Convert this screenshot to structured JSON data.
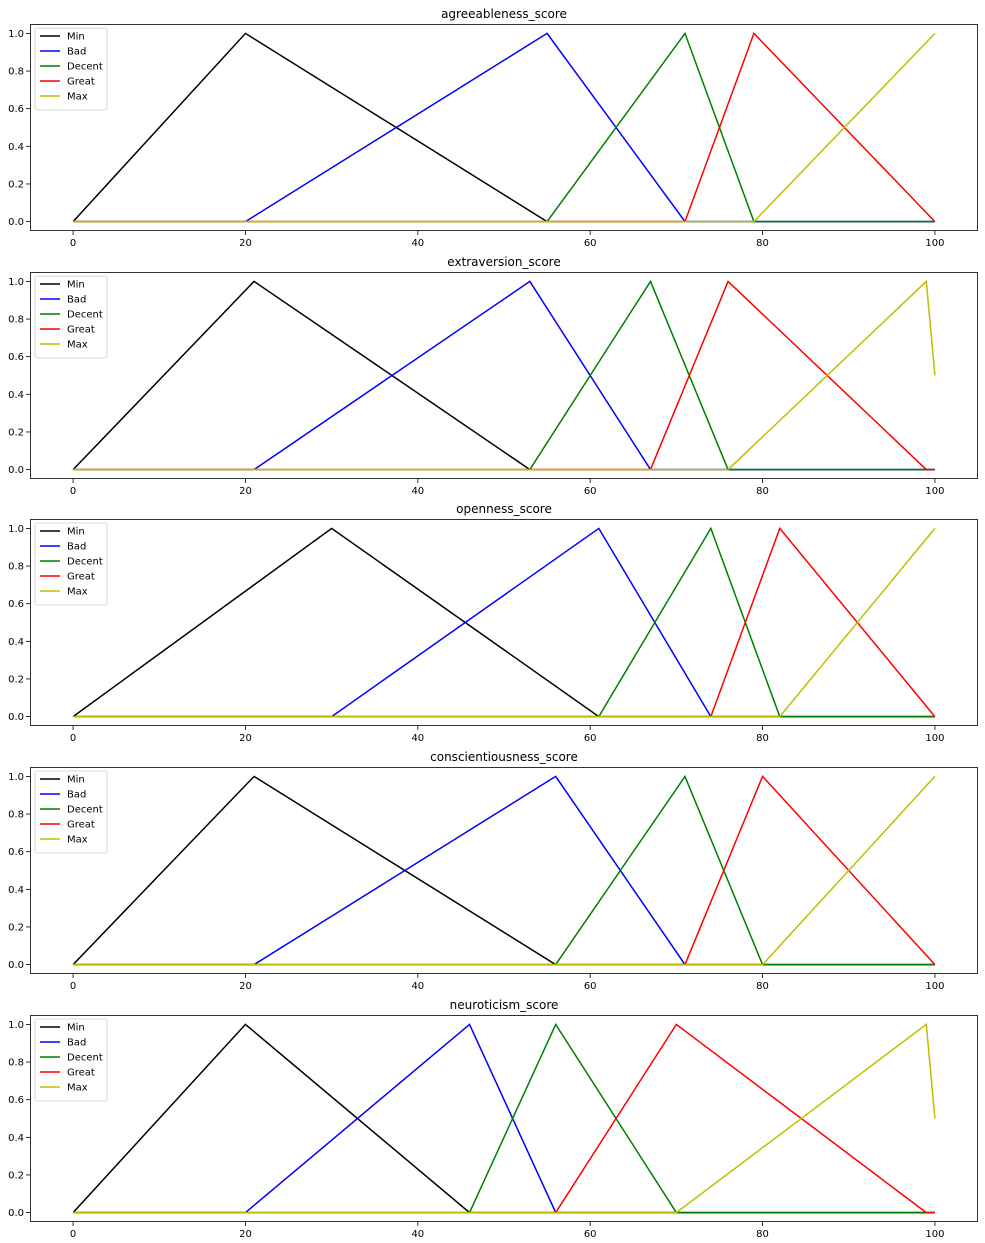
{
  "chart_data": [
    {
      "type": "line",
      "title": "agreeableness_score",
      "xlim": [
        -5,
        105
      ],
      "ylim": [
        -0.05,
        1.05
      ],
      "xticks": [
        0,
        20,
        40,
        60,
        80,
        100
      ],
      "xtick_labels": [
        "0",
        "20",
        "40",
        "60",
        "80",
        "100"
      ],
      "yticks": [
        0,
        0.2,
        0.4,
        0.6,
        0.8,
        1.0
      ],
      "ytick_labels": [
        "0.0",
        "0.2",
        "0.4",
        "0.6",
        "0.8",
        "1.0"
      ],
      "legend": "upper left",
      "series": [
        {
          "name": "Min",
          "color": "#000000",
          "x": [
            0,
            20,
            55,
            100
          ],
          "y": [
            0,
            1,
            0,
            0
          ]
        },
        {
          "name": "Bad",
          "color": "#0000ff",
          "x": [
            0,
            20,
            55,
            71,
            100
          ],
          "y": [
            0,
            0,
            1,
            0,
            0
          ]
        },
        {
          "name": "Decent",
          "color": "#008000",
          "x": [
            0,
            55,
            71,
            79,
            100
          ],
          "y": [
            0,
            0,
            1,
            0,
            0
          ]
        },
        {
          "name": "Great",
          "color": "#ff0000",
          "x": [
            0,
            71,
            79,
            100
          ],
          "y": [
            0,
            0,
            1,
            0
          ]
        },
        {
          "name": "Max",
          "color": "#bfbf00",
          "x": [
            0,
            79,
            100
          ],
          "y": [
            0,
            0,
            1
          ]
        }
      ]
    },
    {
      "type": "line",
      "title": "extraversion_score",
      "xlim": [
        -5,
        105
      ],
      "ylim": [
        -0.05,
        1.05
      ],
      "xticks": [
        0,
        20,
        40,
        60,
        80,
        100
      ],
      "xtick_labels": [
        "0",
        "20",
        "40",
        "60",
        "80",
        "100"
      ],
      "yticks": [
        0,
        0.2,
        0.4,
        0.6,
        0.8,
        1.0
      ],
      "ytick_labels": [
        "0.0",
        "0.2",
        "0.4",
        "0.6",
        "0.8",
        "1.0"
      ],
      "legend": "upper left",
      "series": [
        {
          "name": "Min",
          "color": "#000000",
          "x": [
            0,
            21,
            53,
            100
          ],
          "y": [
            0,
            1,
            0,
            0
          ]
        },
        {
          "name": "Bad",
          "color": "#0000ff",
          "x": [
            0,
            21,
            53,
            67,
            100
          ],
          "y": [
            0,
            0,
            1,
            0,
            0
          ]
        },
        {
          "name": "Decent",
          "color": "#008000",
          "x": [
            0,
            53,
            67,
            76,
            100
          ],
          "y": [
            0,
            0,
            1,
            0,
            0
          ]
        },
        {
          "name": "Great",
          "color": "#ff0000",
          "x": [
            0,
            67,
            76,
            99,
            100
          ],
          "y": [
            0,
            0,
            1,
            0,
            0
          ]
        },
        {
          "name": "Max",
          "color": "#bfbf00",
          "x": [
            0,
            76,
            99,
            100
          ],
          "y": [
            0,
            0,
            1,
            0.5
          ]
        }
      ]
    },
    {
      "type": "line",
      "title": "openness_score",
      "xlim": [
        -5,
        105
      ],
      "ylim": [
        -0.05,
        1.05
      ],
      "xticks": [
        0,
        20,
        40,
        60,
        80,
        100
      ],
      "xtick_labels": [
        "0",
        "20",
        "40",
        "60",
        "80",
        "100"
      ],
      "yticks": [
        0,
        0.2,
        0.4,
        0.6,
        0.8,
        1.0
      ],
      "ytick_labels": [
        "0.0",
        "0.2",
        "0.4",
        "0.6",
        "0.8",
        "1.0"
      ],
      "legend": "upper left",
      "series": [
        {
          "name": "Min",
          "color": "#000000",
          "x": [
            0,
            30,
            61,
            100
          ],
          "y": [
            0,
            1,
            0,
            0
          ]
        },
        {
          "name": "Bad",
          "color": "#0000ff",
          "x": [
            0,
            30,
            61,
            74,
            100
          ],
          "y": [
            0,
            0,
            1,
            0,
            0
          ]
        },
        {
          "name": "Decent",
          "color": "#008000",
          "x": [
            0,
            61,
            74,
            82,
            100
          ],
          "y": [
            0,
            0,
            1,
            0,
            0
          ]
        },
        {
          "name": "Great",
          "color": "#ff0000",
          "x": [
            0,
            74,
            82,
            100
          ],
          "y": [
            0,
            0,
            1,
            0
          ]
        },
        {
          "name": "Max",
          "color": "#bfbf00",
          "x": [
            0,
            82,
            100
          ],
          "y": [
            0,
            0,
            1
          ]
        }
      ]
    },
    {
      "type": "line",
      "title": "conscientiousness_score",
      "xlim": [
        -5,
        105
      ],
      "ylim": [
        -0.05,
        1.05
      ],
      "xticks": [
        0,
        20,
        40,
        60,
        80,
        100
      ],
      "xtick_labels": [
        "0",
        "20",
        "40",
        "60",
        "80",
        "100"
      ],
      "yticks": [
        0,
        0.2,
        0.4,
        0.6,
        0.8,
        1.0
      ],
      "ytick_labels": [
        "0.0",
        "0.2",
        "0.4",
        "0.6",
        "0.8",
        "1.0"
      ],
      "legend": "upper left",
      "series": [
        {
          "name": "Min",
          "color": "#000000",
          "x": [
            0,
            21,
            56,
            100
          ],
          "y": [
            0,
            1,
            0,
            0
          ]
        },
        {
          "name": "Bad",
          "color": "#0000ff",
          "x": [
            0,
            21,
            56,
            71,
            100
          ],
          "y": [
            0,
            0,
            1,
            0,
            0
          ]
        },
        {
          "name": "Decent",
          "color": "#008000",
          "x": [
            0,
            56,
            71,
            80,
            100
          ],
          "y": [
            0,
            0,
            1,
            0,
            0
          ]
        },
        {
          "name": "Great",
          "color": "#ff0000",
          "x": [
            0,
            71,
            80,
            100
          ],
          "y": [
            0,
            0,
            1,
            0
          ]
        },
        {
          "name": "Max",
          "color": "#bfbf00",
          "x": [
            0,
            80,
            100
          ],
          "y": [
            0,
            0,
            1
          ]
        }
      ]
    },
    {
      "type": "line",
      "title": "neuroticism_score",
      "xlim": [
        -5,
        105
      ],
      "ylim": [
        -0.05,
        1.05
      ],
      "xticks": [
        0,
        20,
        40,
        60,
        80,
        100
      ],
      "xtick_labels": [
        "0",
        "20",
        "40",
        "60",
        "80",
        "100"
      ],
      "yticks": [
        0,
        0.2,
        0.4,
        0.6,
        0.8,
        1.0
      ],
      "ytick_labels": [
        "0.0",
        "0.2",
        "0.4",
        "0.6",
        "0.8",
        "1.0"
      ],
      "legend": "upper left",
      "series": [
        {
          "name": "Min",
          "color": "#000000",
          "x": [
            0,
            20,
            46,
            100
          ],
          "y": [
            0,
            1,
            0,
            0
          ]
        },
        {
          "name": "Bad",
          "color": "#0000ff",
          "x": [
            0,
            20,
            46,
            56,
            100
          ],
          "y": [
            0,
            0,
            1,
            0,
            0
          ]
        },
        {
          "name": "Decent",
          "color": "#008000",
          "x": [
            0,
            46,
            56,
            70,
            100
          ],
          "y": [
            0,
            0,
            1,
            0,
            0
          ]
        },
        {
          "name": "Great",
          "color": "#ff0000",
          "x": [
            0,
            56,
            70,
            99,
            100
          ],
          "y": [
            0,
            0,
            1,
            0,
            0
          ]
        },
        {
          "name": "Max",
          "color": "#bfbf00",
          "x": [
            0,
            70,
            99,
            100
          ],
          "y": [
            0,
            0,
            1,
            0.5
          ]
        }
      ]
    }
  ]
}
